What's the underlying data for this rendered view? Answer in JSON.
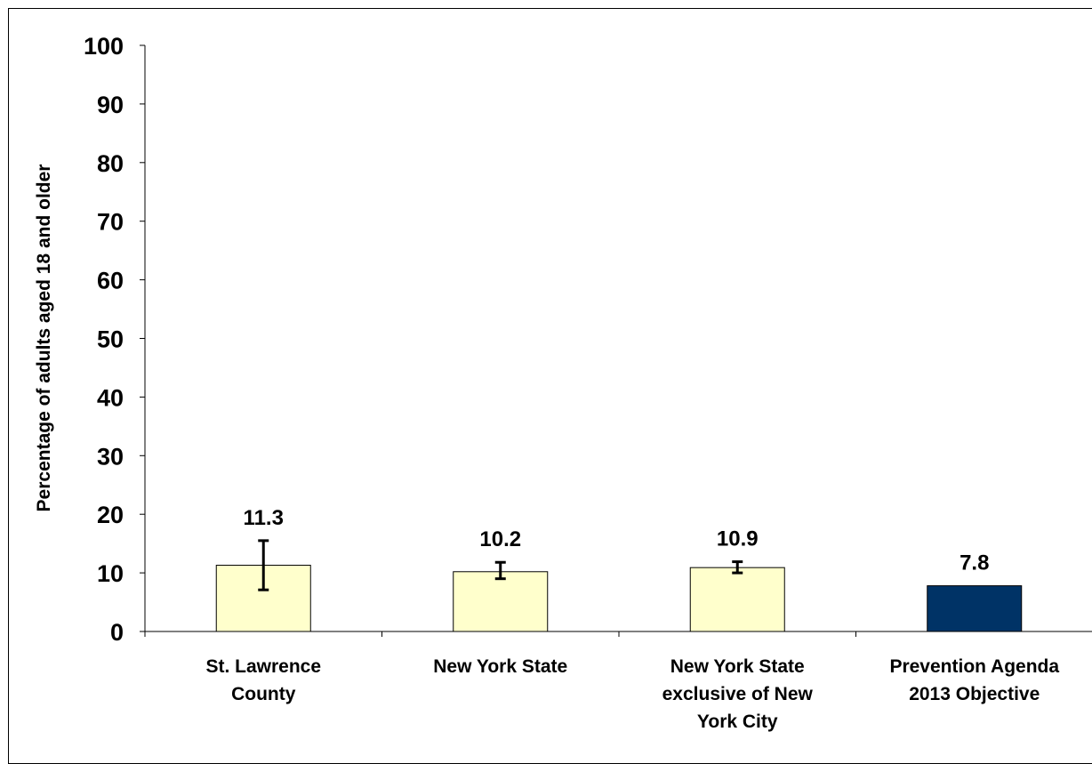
{
  "top_caption": "",
  "chart_data": {
    "type": "bar",
    "title": "",
    "xlabel": "",
    "ylabel": "Percentage of adults aged 18 and older",
    "ylim": [
      0,
      100
    ],
    "yticks": [
      0,
      10,
      20,
      30,
      40,
      50,
      60,
      70,
      80,
      90,
      100
    ],
    "grid": false,
    "legend": "none",
    "categories": [
      [
        "St. Lawrence",
        "County"
      ],
      [
        "New York State"
      ],
      [
        "New York State",
        "exclusive of New",
        "York City"
      ],
      [
        "Prevention Agenda",
        "2013 Objective"
      ]
    ],
    "values": [
      11.3,
      10.2,
      10.9,
      7.8
    ],
    "data_labels": [
      "11.3",
      "10.2",
      "10.9",
      "7.8"
    ],
    "error_bars": [
      [
        7.1,
        15.5
      ],
      [
        9.0,
        11.8
      ],
      [
        10.0,
        11.9
      ],
      null
    ],
    "bar_colors": [
      "#FFFFCC",
      "#FFFFCC",
      "#FFFFCC",
      "#003366"
    ]
  }
}
